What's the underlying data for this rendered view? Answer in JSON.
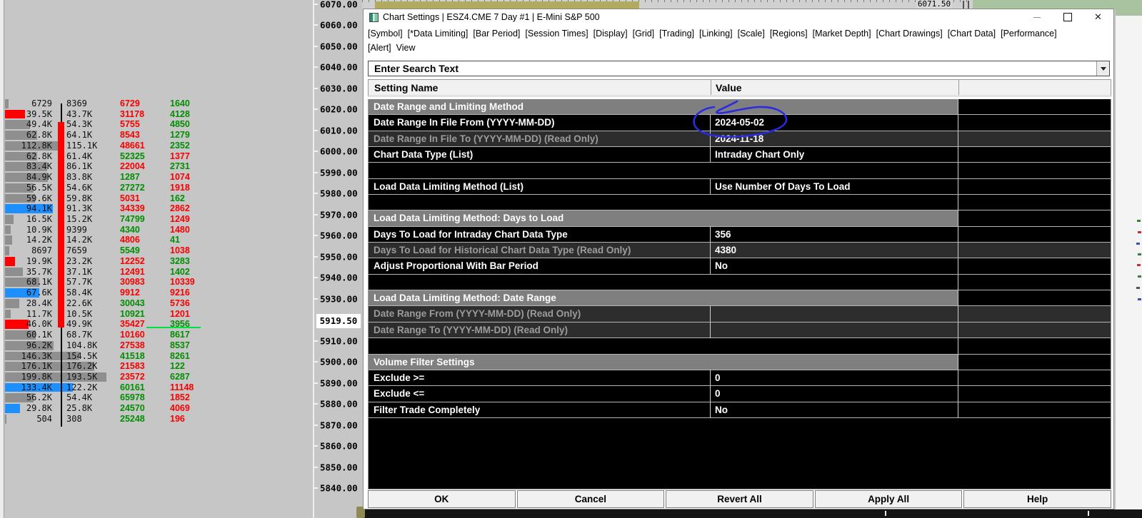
{
  "window": {
    "title": "Chart Settings | ESZ4.CME  7 Day  #1 | E-Mini S&P 500",
    "controls": {
      "minimize": "minimize",
      "maximize": "maximize",
      "close": "close"
    }
  },
  "menu": {
    "row1": [
      "[Symbol]",
      "[*Data Limiting]",
      "[Bar Period]",
      "[Session Times]",
      "[Display]",
      "[Grid]",
      "[Trading]",
      "[Linking]",
      "[Scale]",
      "[Regions]",
      "[Market Depth]",
      "[Chart Drawings]",
      "[Chart Data]",
      "[Performance]"
    ],
    "row2": [
      "[Alert]",
      "View"
    ]
  },
  "search": {
    "text": "Enter Search Text"
  },
  "table": {
    "columns": [
      "Setting Name",
      "Value"
    ],
    "rows": [
      {
        "kind": "section",
        "name": "Date Range and Limiting Method"
      },
      {
        "kind": "setting",
        "name": "Date Range In File From (YYYY-MM-DD)",
        "value": "2024-05-02",
        "readonly": false,
        "annotated": true
      },
      {
        "kind": "setting",
        "name": "Date Range In File To (YYYY-MM-DD) (Read Only)",
        "value": "2024-11-18",
        "readonly": true
      },
      {
        "kind": "setting",
        "name": "Chart Data Type (List)",
        "value": "Intraday Chart Only",
        "readonly": false
      },
      {
        "kind": "spacer"
      },
      {
        "kind": "setting",
        "name": "Load Data Limiting Method (List)",
        "value": "Use Number Of Days To Load",
        "readonly": false
      },
      {
        "kind": "spacer"
      },
      {
        "kind": "section",
        "name": "Load Data Limiting Method: Days to Load"
      },
      {
        "kind": "setting",
        "name": "Days To Load for Intraday Chart Data Type",
        "value": "356",
        "readonly": false
      },
      {
        "kind": "setting",
        "name": "Days To Load for Historical Chart Data Type (Read Only)",
        "value": "4380",
        "readonly": true
      },
      {
        "kind": "setting",
        "name": "Adjust Proportional With Bar Period",
        "value": "No",
        "readonly": false
      },
      {
        "kind": "spacer"
      },
      {
        "kind": "section",
        "name": "Load Data Limiting Method: Date Range"
      },
      {
        "kind": "setting",
        "name": "Date Range From (YYYY-MM-DD) (Read Only)",
        "value": "",
        "readonly": true
      },
      {
        "kind": "setting",
        "name": "Date Range To (YYYY-MM-DD) (Read Only)",
        "value": "",
        "readonly": true
      },
      {
        "kind": "spacer"
      },
      {
        "kind": "section",
        "name": "Volume Filter Settings"
      },
      {
        "kind": "setting",
        "name": "Exclude >=",
        "value": "0",
        "readonly": false
      },
      {
        "kind": "setting",
        "name": "Exclude <=",
        "value": "0",
        "readonly": false
      },
      {
        "kind": "setting",
        "name": "Filter Trade Completely",
        "value": "No",
        "readonly": false
      }
    ]
  },
  "buttons": [
    "OK",
    "Cancel",
    "Revert All",
    "Apply All",
    "Help"
  ],
  "price_scale": {
    "ticks": [
      "6070.00",
      "6060.00",
      "6050.00",
      "6040.00",
      "6030.00",
      "6020.00",
      "6010.00",
      "6000.00",
      "5990.00",
      "5980.00",
      "5970.00",
      "5960.00",
      "5950.00",
      "5940.00",
      "5930.00",
      "5910.00",
      "5900.00",
      "5890.00",
      "5880.00",
      "5870.00",
      "5860.00",
      "5850.00",
      "5840.00"
    ],
    "last_price": "5919.50"
  },
  "top_strip": {
    "price_label": "6071.50"
  },
  "profile": {
    "rows": [
      {
        "c1": "6729",
        "v": 6729,
        "c2": "8369",
        "c3": "6729",
        "c3c": "dn",
        "c4": "1640",
        "c4c": "up",
        "bar": "gray"
      },
      {
        "c1": "39.5K",
        "v": 39500,
        "c2": "43.7K",
        "c3": "31178",
        "c3c": "dn",
        "c4": "4128",
        "c4c": "up",
        "bar": "red"
      },
      {
        "c1": "49.4K",
        "v": 49400,
        "c2": "54.3K",
        "c3": "5755",
        "c3c": "dn",
        "c4": "4850",
        "c4c": "up",
        "bar": "gray"
      },
      {
        "c1": "62.8K",
        "v": 62800,
        "c2": "64.1K",
        "c3": "8543",
        "c3c": "dn",
        "c4": "1279",
        "c4c": "up",
        "bar": "gray"
      },
      {
        "c1": "112.8K",
        "v": 112800,
        "c2": "115.1K",
        "c3": "48661",
        "c3c": "dn",
        "c4": "2352",
        "c4c": "up",
        "bar": "gray"
      },
      {
        "c1": "62.8K",
        "v": 62800,
        "c2": "61.4K",
        "c3": "52325",
        "c3c": "up",
        "c4": "1377",
        "c4c": "dn",
        "bar": "gray"
      },
      {
        "c1": "83.4K",
        "v": 83400,
        "c2": "86.1K",
        "c3": "22004",
        "c3c": "dn",
        "c4": "2731",
        "c4c": "up",
        "bar": "gray"
      },
      {
        "c1": "84.9K",
        "v": 84900,
        "c2": "83.8K",
        "c3": "1287",
        "c3c": "up",
        "c4": "1074",
        "c4c": "dn",
        "bar": "gray"
      },
      {
        "c1": "56.5K",
        "v": 56500,
        "c2": "54.6K",
        "c3": "27272",
        "c3c": "up",
        "c4": "1918",
        "c4c": "dn",
        "bar": "gray"
      },
      {
        "c1": "59.6K",
        "v": 59600,
        "c2": "59.8K",
        "c3": "5031",
        "c3c": "dn",
        "c4": "162",
        "c4c": "up",
        "bar": "gray"
      },
      {
        "c1": "94.1K",
        "v": 94100,
        "c2": "91.3K",
        "c3": "34339",
        "c3c": "dn",
        "c4": "2862",
        "c4c": "dn",
        "bar": "blue"
      },
      {
        "c1": "16.5K",
        "v": 16500,
        "c2": "15.2K",
        "c3": "74799",
        "c3c": "up",
        "c4": "1249",
        "c4c": "dn",
        "bar": "gray"
      },
      {
        "c1": "10.9K",
        "v": 10900,
        "c2": "9399",
        "c3": "4340",
        "c3c": "up",
        "c4": "1480",
        "c4c": "dn",
        "bar": "gray"
      },
      {
        "c1": "14.2K",
        "v": 14200,
        "c2": "14.2K",
        "c3": "4806",
        "c3c": "dn",
        "c4": "41",
        "c4c": "up",
        "bar": "gray"
      },
      {
        "c1": "8697",
        "v": 8697,
        "c2": "7659",
        "c3": "5549",
        "c3c": "up",
        "c4": "1038",
        "c4c": "dn",
        "bar": "gray"
      },
      {
        "c1": "19.9K",
        "v": 19900,
        "c2": "23.2K",
        "c3": "12252",
        "c3c": "dn",
        "c4": "3283",
        "c4c": "up",
        "bar": "red"
      },
      {
        "c1": "35.7K",
        "v": 35700,
        "c2": "37.1K",
        "c3": "12491",
        "c3c": "dn",
        "c4": "1402",
        "c4c": "up",
        "bar": "gray"
      },
      {
        "c1": "68.1K",
        "v": 68100,
        "c2": "57.7K",
        "c3": "30983",
        "c3c": "dn",
        "c4": "10339",
        "c4c": "dn",
        "bar": "gray"
      },
      {
        "c1": "67.6K",
        "v": 67600,
        "c2": "58.4K",
        "c3": "9912",
        "c3c": "dn",
        "c4": "9216",
        "c4c": "dn",
        "bar": "blue"
      },
      {
        "c1": "28.4K",
        "v": 28400,
        "c2": "22.6K",
        "c3": "30043",
        "c3c": "up",
        "c4": "5736",
        "c4c": "dn",
        "bar": "gray"
      },
      {
        "c1": "11.7K",
        "v": 11700,
        "c2": "10.5K",
        "c3": "10921",
        "c3c": "up",
        "c4": "1201",
        "c4c": "dn",
        "bar": "gray"
      },
      {
        "c1": "46.0K",
        "v": 46000,
        "c2": "49.9K",
        "c3": "35427",
        "c3c": "dn",
        "c4": "3956",
        "c4c": "up",
        "bar": "red"
      },
      {
        "c1": "60.1K",
        "v": 60100,
        "c2": "68.7K",
        "c3": "10160",
        "c3c": "dn",
        "c4": "8617",
        "c4c": "up",
        "bar": "gray"
      },
      {
        "c1": "96.2K",
        "v": 96200,
        "c2": "104.8K",
        "c3": "27538",
        "c3c": "dn",
        "c4": "8537",
        "c4c": "up",
        "bar": "gray"
      },
      {
        "c1": "146.3K",
        "v": 146300,
        "c2": "154.5K",
        "c3": "41518",
        "c3c": "up",
        "c4": "8261",
        "c4c": "up",
        "bar": "gray"
      },
      {
        "c1": "176.1K",
        "v": 176100,
        "c2": "176.2K",
        "c3": "21583",
        "c3c": "dn",
        "c4": "122",
        "c4c": "up",
        "bar": "gray"
      },
      {
        "c1": "199.8K",
        "v": 199800,
        "c2": "193.5K",
        "c3": "23572",
        "c3c": "dn",
        "c4": "6287",
        "c4c": "up",
        "bar": "gray"
      },
      {
        "c1": "133.4K",
        "v": 133400,
        "c2": "122.2K",
        "c3": "60161",
        "c3c": "up",
        "c4": "11148",
        "c4c": "dn",
        "bar": "blue"
      },
      {
        "c1": "56.2K",
        "v": 56200,
        "c2": "54.4K",
        "c3": "65978",
        "c3c": "up",
        "c4": "1852",
        "c4c": "dn",
        "bar": "gray"
      },
      {
        "c1": "29.8K",
        "v": 29800,
        "c2": "25.8K",
        "c3": "24570",
        "c3c": "up",
        "c4": "4069",
        "c4c": "dn",
        "bar": "blue"
      },
      {
        "c1": "504",
        "v": 504,
        "c2": "308",
        "c3": "25248",
        "c3c": "up",
        "c4": "196",
        "c4c": "dn",
        "bar": "gray"
      }
    ]
  },
  "colors": {
    "up_green": "#008f00",
    "down_red": "#f80000",
    "bar_gray": "#8f8f8f",
    "bar_red": "#ff0000",
    "bar_blue": "#1e8fff",
    "last_price_line": "#00e040",
    "annotation_blue": "#2a2ae0",
    "olive": "#b2aa5e",
    "sage_green": "#a9c2a0"
  }
}
